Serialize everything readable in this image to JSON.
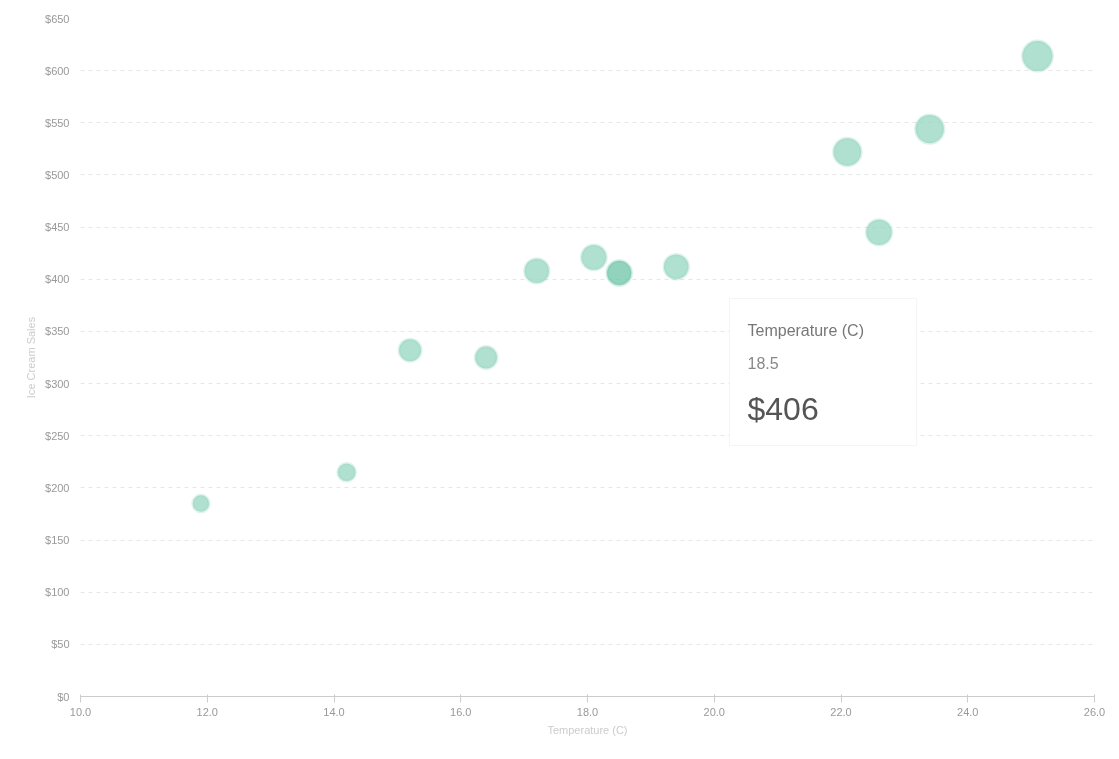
{
  "chart_data": {
    "type": "bubble",
    "xlabel": "Temperature (C)",
    "ylabel": "Ice Cream Sales",
    "x": [
      14.2,
      16.4,
      11.9,
      15.2,
      18.5,
      22.1,
      19.4,
      25.1,
      23.4,
      18.1,
      22.6,
      17.2
    ],
    "values": [
      215,
      325,
      185,
      332,
      406,
      522,
      412,
      614,
      544,
      421,
      445,
      408
    ],
    "sizes": [
      0.35,
      0.53,
      0.3,
      0.54,
      0.66,
      0.85,
      0.67,
      1,
      0.89,
      0.69,
      0.72,
      0.66
    ],
    "colors": [
      "#95d5c0",
      "#95d5c0",
      "#95d5c0",
      "#95d5c0",
      "#6cc4a6",
      "#95d5c0",
      "#95d5c0",
      "#95d5c0",
      "#95d5c0",
      "#95d5c0",
      "#95d5c0",
      "#95d5c0"
    ],
    "xlim": [
      10,
      26
    ],
    "ylim": [
      0,
      650
    ],
    "xticks": [
      {
        "value": 10,
        "label": "10.0"
      },
      {
        "value": 12,
        "label": "12.0"
      },
      {
        "value": 14,
        "label": "14.0"
      },
      {
        "value": 16,
        "label": "16.0"
      },
      {
        "value": 18,
        "label": "18.0"
      },
      {
        "value": 20,
        "label": "20.0"
      },
      {
        "value": 22,
        "label": "22.0"
      },
      {
        "value": 24,
        "label": "24.0"
      },
      {
        "value": 26,
        "label": "26.0"
      }
    ],
    "yticks": [
      {
        "value": 0,
        "label": "$0"
      },
      {
        "value": 50,
        "label": "$50"
      },
      {
        "value": 100,
        "label": "$100"
      },
      {
        "value": 150,
        "label": "$150"
      },
      {
        "value": 200,
        "label": "$200"
      },
      {
        "value": 250,
        "label": "$250"
      },
      {
        "value": 300,
        "label": "$300"
      },
      {
        "value": 350,
        "label": "$350"
      },
      {
        "value": 400,
        "label": "$400"
      },
      {
        "value": 450,
        "label": "$450"
      },
      {
        "value": 500,
        "label": "$500"
      },
      {
        "value": 550,
        "label": "$550"
      },
      {
        "value": 600,
        "label": "$600"
      },
      {
        "value": 650,
        "label": "$650"
      }
    ],
    "grid": "y",
    "annotations": [
      "Temperature (C)",
      "18.5",
      "$406"
    ]
  }
}
